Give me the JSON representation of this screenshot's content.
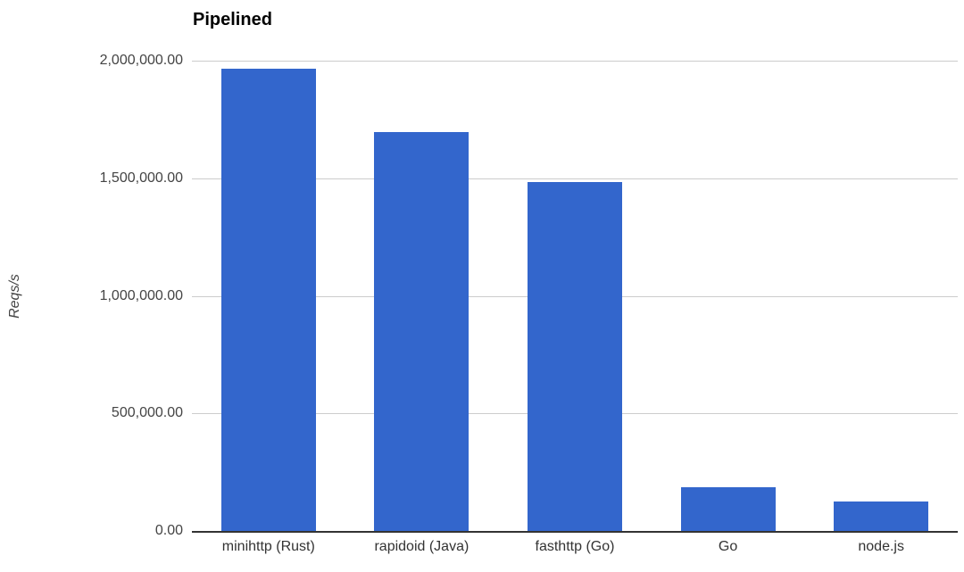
{
  "chart_data": {
    "type": "bar",
    "title": "Pipelined",
    "categories": [
      "minihttp (Rust)",
      "rapidoid (Java)",
      "fasthttp (Go)",
      "Go",
      "node.js"
    ],
    "values": [
      1965000,
      1695000,
      1485000,
      186000,
      127000
    ],
    "xlabel": "",
    "ylabel": "Reqs/s",
    "ylim": [
      0,
      2000000
    ],
    "ytick_interval": 500000,
    "ytick_labels": [
      "0.00",
      "500,000.00",
      "1,000,000.00",
      "1,500,000.00",
      "2,000,000.00"
    ],
    "grid": true,
    "legend_position": "none",
    "bar_color": "#3366CC"
  },
  "colors": {
    "bar": "#3366CC",
    "gridline": "#cccccc",
    "axis_line": "#333333",
    "tick_label": "#444444",
    "category_label": "#333333",
    "title": "#000000",
    "background": "#ffffff"
  }
}
